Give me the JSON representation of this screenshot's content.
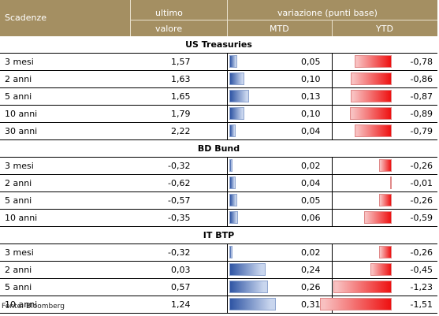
{
  "header": {
    "col_scadenze": "Scadenze",
    "col_ultimo_line1": "ultimo",
    "col_ultimo_line2": "valore",
    "col_variazione": "variazione (punti base)",
    "col_mtd": "MTD",
    "col_ytd": "YTD"
  },
  "sections": [
    {
      "title": "US Treasuries",
      "rows": [
        {
          "scadenza": "3 mesi",
          "ultimo": "1,57",
          "mtd": "0,05",
          "ytd": "-0,78",
          "mtd_num": 0.05,
          "ytd_num": -0.78
        },
        {
          "scadenza": "2 anni",
          "ultimo": "1,63",
          "mtd": "0,10",
          "ytd": "-0,86",
          "mtd_num": 0.1,
          "ytd_num": -0.86
        },
        {
          "scadenza": "5 anni",
          "ultimo": "1,65",
          "mtd": "0,13",
          "ytd": "-0,87",
          "mtd_num": 0.13,
          "ytd_num": -0.87
        },
        {
          "scadenza": "10 anni",
          "ultimo": "1,79",
          "mtd": "0,10",
          "ytd": "-0,89",
          "mtd_num": 0.1,
          "ytd_num": -0.89
        },
        {
          "scadenza": "30 anni",
          "ultimo": "2,22",
          "mtd": "0,04",
          "ytd": "-0,79",
          "mtd_num": 0.04,
          "ytd_num": -0.79
        }
      ]
    },
    {
      "title": "BD Bund",
      "rows": [
        {
          "scadenza": "3 mesi",
          "ultimo": "-0,32",
          "mtd": "0,02",
          "ytd": "-0,26",
          "mtd_num": 0.02,
          "ytd_num": -0.26
        },
        {
          "scadenza": "2 anni",
          "ultimo": "-0,62",
          "mtd": "0,04",
          "ytd": "-0,01",
          "mtd_num": 0.04,
          "ytd_num": -0.01
        },
        {
          "scadenza": "5 anni",
          "ultimo": "-0,57",
          "mtd": "0,05",
          "ytd": "-0,26",
          "mtd_num": 0.05,
          "ytd_num": -0.26
        },
        {
          "scadenza": "10 anni",
          "ultimo": "-0,35",
          "mtd": "0,06",
          "ytd": "-0,59",
          "mtd_num": 0.06,
          "ytd_num": -0.59
        }
      ]
    },
    {
      "title": "IT BTP",
      "rows": [
        {
          "scadenza": "3 mesi",
          "ultimo": "-0,32",
          "mtd": "0,02",
          "ytd": "-0,26",
          "mtd_num": 0.02,
          "ytd_num": -0.26
        },
        {
          "scadenza": "2 anni",
          "ultimo": "0,03",
          "mtd": "0,24",
          "ytd": "-0,45",
          "mtd_num": 0.24,
          "ytd_num": -0.45
        },
        {
          "scadenza": "5 anni",
          "ultimo": "0,57",
          "mtd": "0,26",
          "ytd": "-1,23",
          "mtd_num": 0.26,
          "ytd_num": -1.23
        },
        {
          "scadenza": "10 anni",
          "ultimo": "1,24",
          "mtd": "0,31",
          "ytd": "-1,51",
          "mtd_num": 0.31,
          "ytd_num": -1.51
        }
      ]
    }
  ],
  "source": "Fonte: Bloomberg",
  "colors": {
    "header_bg": "#a48f62",
    "mtd_bar": "#2f55a4",
    "ytd_bar": "#ee1111"
  }
}
